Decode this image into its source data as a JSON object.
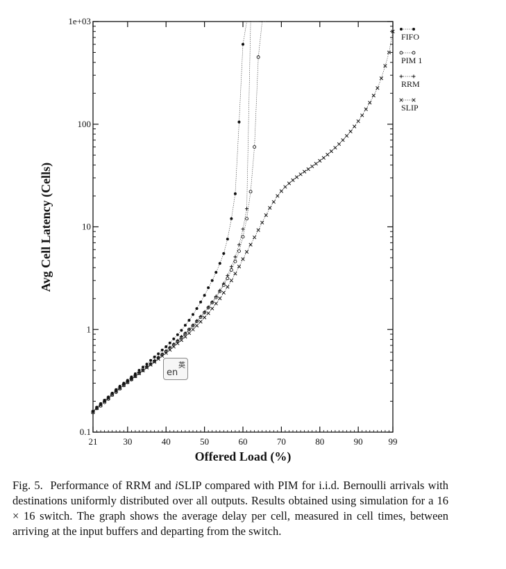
{
  "chart_data": {
    "type": "line",
    "title": "",
    "xlabel": "Offered Load (%)",
    "ylabel": "Avg Cell Latency (Cells)",
    "xlim": [
      21,
      99
    ],
    "ylim": [
      0.1,
      1000
    ],
    "yscale": "log",
    "x_ticks": [
      21,
      30,
      40,
      50,
      60,
      70,
      80,
      90,
      99
    ],
    "x_tick_labels": [
      "21",
      "30",
      "40",
      "50",
      "60",
      "70",
      "80",
      "90",
      "99"
    ],
    "y_ticks": [
      0.1,
      1,
      10,
      100,
      1000
    ],
    "y_tick_labels": [
      "0.1",
      "1",
      "10",
      "100",
      "1e+03"
    ],
    "legend_position": "right",
    "series": [
      {
        "name": "FIFO",
        "legend_label": "FIFO",
        "marker": "dot",
        "x": [
          21,
          22,
          23,
          24,
          25,
          26,
          27,
          28,
          29,
          30,
          31,
          32,
          33,
          34,
          35,
          36,
          37,
          38,
          39,
          40,
          41,
          42,
          43,
          44,
          45,
          46,
          47,
          48,
          49,
          50,
          51,
          52,
          53,
          54,
          55,
          56,
          57,
          58,
          59,
          60,
          61,
          62
        ],
        "y": [
          0.16,
          0.175,
          0.19,
          0.205,
          0.22,
          0.24,
          0.26,
          0.28,
          0.3,
          0.32,
          0.345,
          0.37,
          0.4,
          0.43,
          0.46,
          0.5,
          0.54,
          0.58,
          0.63,
          0.68,
          0.74,
          0.81,
          0.89,
          0.98,
          1.1,
          1.23,
          1.4,
          1.6,
          1.85,
          2.15,
          2.55,
          3.0,
          3.6,
          4.4,
          5.5,
          7.6,
          12,
          21,
          105,
          600,
          1000,
          1000
        ]
      },
      {
        "name": "PIM 1",
        "legend_label": "PIM 1",
        "marker": "circle",
        "x": [
          21,
          22,
          23,
          24,
          25,
          26,
          27,
          28,
          29,
          30,
          31,
          32,
          33,
          34,
          35,
          36,
          37,
          38,
          39,
          40,
          41,
          42,
          43,
          44,
          45,
          46,
          47,
          48,
          49,
          50,
          51,
          52,
          53,
          54,
          55,
          56,
          57,
          58,
          59,
          60,
          61,
          62,
          63,
          64,
          65,
          66
        ],
        "y": [
          0.155,
          0.17,
          0.18,
          0.195,
          0.21,
          0.23,
          0.245,
          0.265,
          0.285,
          0.305,
          0.325,
          0.35,
          0.375,
          0.4,
          0.43,
          0.46,
          0.49,
          0.53,
          0.57,
          0.61,
          0.66,
          0.71,
          0.77,
          0.84,
          0.91,
          1.0,
          1.09,
          1.2,
          1.32,
          1.46,
          1.63,
          1.83,
          2.05,
          2.35,
          2.7,
          3.15,
          3.8,
          4.6,
          5.8,
          8,
          12,
          22,
          60,
          450,
          1000,
          1000
        ]
      },
      {
        "name": "RRM",
        "legend_label": "RRM",
        "marker": "plus",
        "x": [
          21,
          22,
          23,
          24,
          25,
          26,
          27,
          28,
          29,
          30,
          31,
          32,
          33,
          34,
          35,
          36,
          37,
          38,
          39,
          40,
          41,
          42,
          43,
          44,
          45,
          46,
          47,
          48,
          49,
          50,
          51,
          52,
          53,
          54,
          55,
          56,
          57,
          58,
          59,
          60,
          61,
          62,
          63,
          64
        ],
        "y": [
          0.158,
          0.172,
          0.185,
          0.2,
          0.215,
          0.235,
          0.25,
          0.27,
          0.29,
          0.31,
          0.33,
          0.355,
          0.38,
          0.405,
          0.435,
          0.465,
          0.5,
          0.535,
          0.575,
          0.62,
          0.67,
          0.72,
          0.78,
          0.85,
          0.92,
          1.0,
          1.1,
          1.21,
          1.34,
          1.48,
          1.65,
          1.85,
          2.1,
          2.4,
          2.8,
          3.35,
          4.1,
          5.1,
          6.7,
          9.5,
          15,
          1000,
          1000,
          1000
        ]
      },
      {
        "name": "SLIP",
        "legend_label": "SLIP",
        "marker": "cross",
        "x": [
          21,
          22,
          23,
          24,
          25,
          26,
          27,
          28,
          29,
          30,
          31,
          32,
          33,
          34,
          35,
          36,
          37,
          38,
          39,
          40,
          41,
          42,
          43,
          44,
          45,
          46,
          47,
          48,
          49,
          50,
          51,
          52,
          53,
          54,
          55,
          56,
          57,
          58,
          59,
          60,
          61,
          62,
          63,
          64,
          65,
          66,
          67,
          68,
          69,
          70,
          71,
          72,
          73,
          74,
          75,
          76,
          77,
          78,
          79,
          80,
          81,
          82,
          83,
          84,
          85,
          86,
          87,
          88,
          89,
          90,
          91,
          92,
          93,
          94,
          95,
          96,
          97,
          98,
          99
        ],
        "y": [
          0.157,
          0.171,
          0.184,
          0.199,
          0.214,
          0.232,
          0.25,
          0.268,
          0.287,
          0.307,
          0.328,
          0.35,
          0.373,
          0.398,
          0.425,
          0.453,
          0.483,
          0.516,
          0.552,
          0.59,
          0.633,
          0.68,
          0.732,
          0.788,
          0.85,
          0.92,
          1.0,
          1.09,
          1.19,
          1.31,
          1.44,
          1.6,
          1.79,
          2.01,
          2.28,
          2.6,
          3.0,
          3.5,
          4.1,
          4.85,
          5.7,
          6.7,
          7.9,
          9.3,
          11,
          13,
          15.3,
          17.5,
          20,
          22.3,
          24.5,
          26.5,
          28.5,
          30.5,
          32.5,
          34.5,
          36.5,
          38.8,
          41.2,
          44,
          47,
          50.5,
          54.5,
          59,
          64,
          70,
          77,
          85,
          95,
          107,
          122,
          140,
          162,
          190,
          225,
          280,
          370,
          500,
          800
        ]
      }
    ]
  },
  "caption": {
    "prefix": "Fig. 5.",
    "part1": "Performance of RRM and ",
    "emph": "i",
    "part2": "SLIP compared with PIM for i.i.d. Bernoulli arrivals with destinations uniformly distributed over all outputs. Results obtained using simulation for a 16 × 16 switch. The graph shows the average delay per cell, measured in cell times, between arriving at the input buffers and departing from the switch."
  },
  "overlay": {
    "icon": "ime-language-icon",
    "en_text": "en",
    "zh_text": "英"
  }
}
